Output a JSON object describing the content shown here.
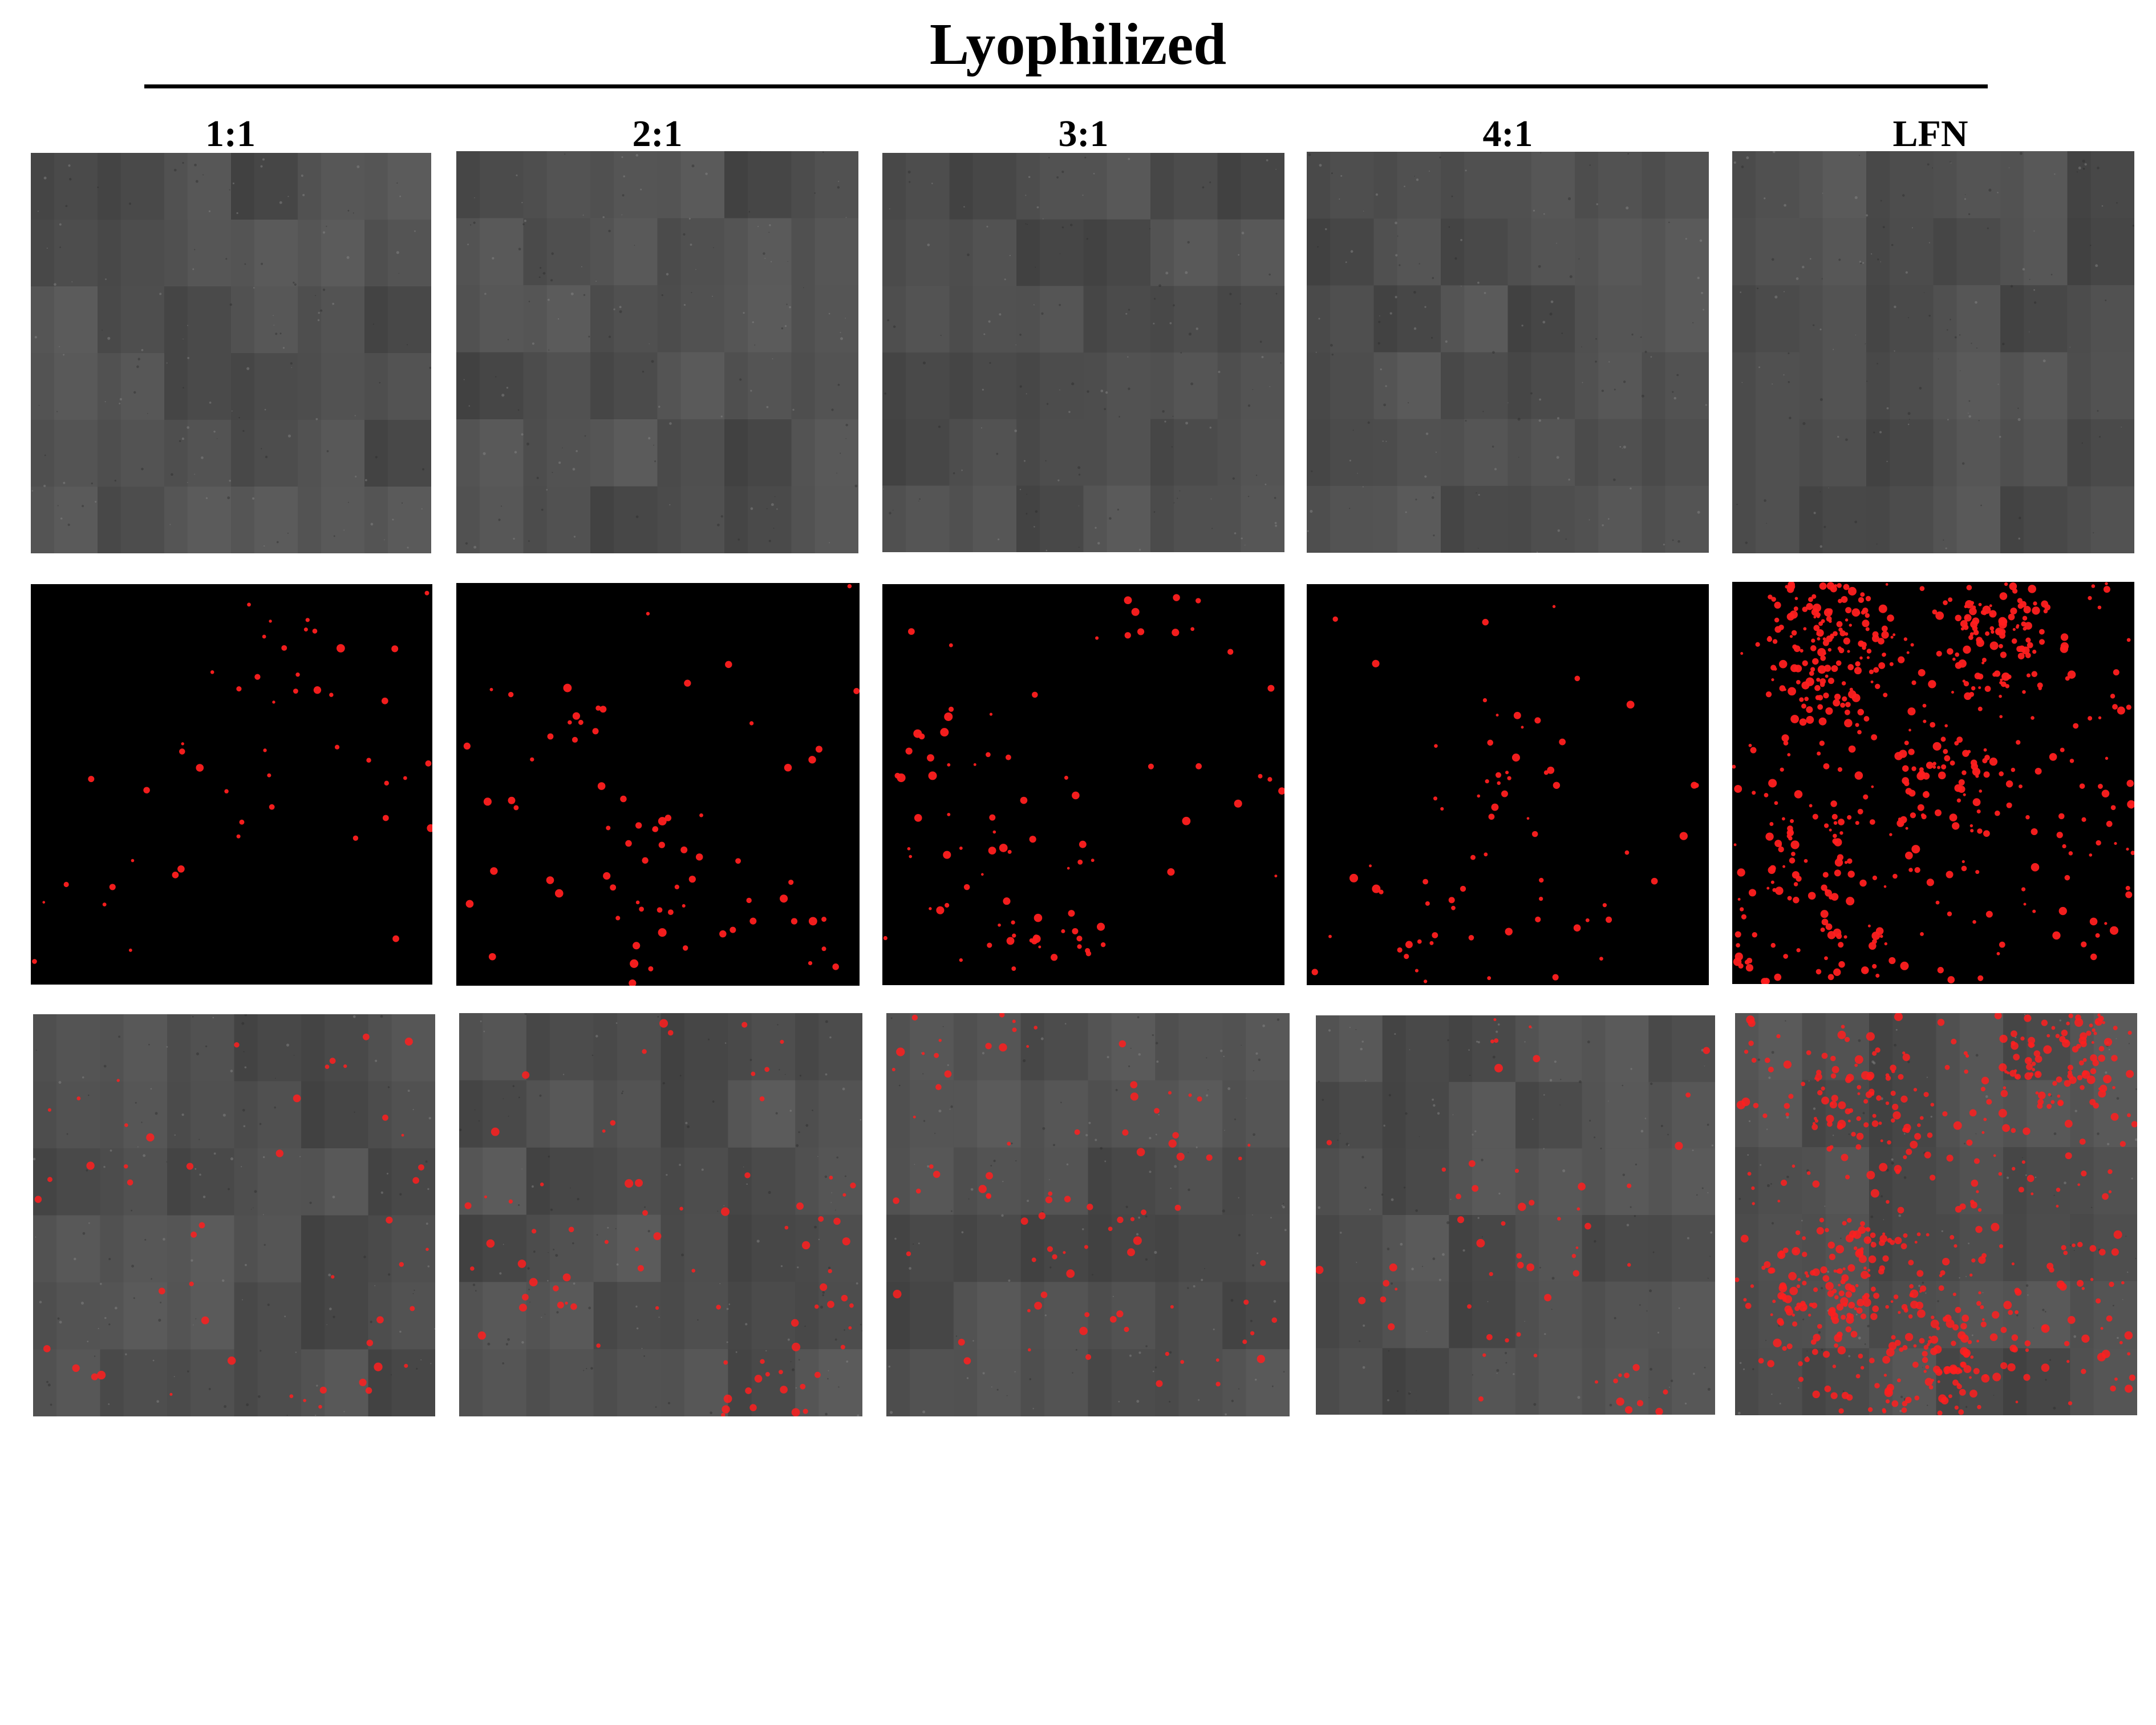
{
  "title": "Lyophilized",
  "columns": [
    {
      "label": "1:1"
    },
    {
      "label": "2:1"
    },
    {
      "label": "3:1"
    },
    {
      "label": "4:1"
    },
    {
      "label": "LFN"
    }
  ],
  "rows": [
    {
      "channel": "brightfield"
    },
    {
      "channel": "red-fluorescence"
    },
    {
      "channel": "overlay"
    }
  ],
  "colors": {
    "brightfield_base": "#505050",
    "fluorescence_background": "#000000",
    "signal_red": "#ff1f1f",
    "text": "#000000"
  }
}
